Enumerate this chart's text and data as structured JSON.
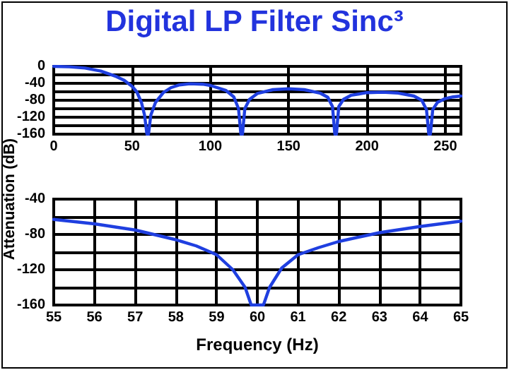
{
  "chart_data": [
    {
      "type": "line",
      "title": "Digital LP Filter Sinc³",
      "ylabel": "Attenuation (dB)",
      "grid": true,
      "marker": "none",
      "line_style": "solid",
      "xlim": [
        0,
        260
      ],
      "xticks": [
        0,
        50,
        100,
        150,
        200,
        250
      ],
      "ylim": [
        -160,
        0
      ],
      "yticks": [
        0,
        {
          "value": -20,
          "label": null
        },
        -40,
        {
          "value": -60,
          "label": null
        },
        -80,
        {
          "value": -100,
          "label": null
        },
        -120,
        {
          "value": -140,
          "label": null
        },
        -160
      ],
      "series": [
        {
          "color": "#1f3fe0",
          "x": [
            0,
            10,
            20,
            30,
            40,
            45,
            50,
            53,
            56,
            58,
            59.5,
            60.5,
            62,
            65,
            70,
            75,
            80,
            87,
            95,
            100,
            110,
            115,
            118,
            119.5,
            120.5,
            122,
            125,
            130,
            140,
            150,
            160,
            170,
            175,
            178,
            179.5,
            180.5,
            182,
            185,
            190,
            200,
            210,
            220,
            230,
            235,
            238,
            239.5,
            240.5,
            242,
            245,
            250,
            255,
            260
          ],
          "values": [
            0,
            -1,
            -4,
            -11,
            -24,
            -33,
            -47,
            -60,
            -85,
            -115,
            -160,
            -160,
            -115,
            -85,
            -62,
            -50,
            -44,
            -41,
            -42,
            -45,
            -57,
            -72,
            -100,
            -160,
            -160,
            -100,
            -78,
            -64,
            -55,
            -53,
            -55,
            -63,
            -73,
            -95,
            -160,
            -160,
            -95,
            -78,
            -68,
            -62,
            -61,
            -63,
            -70,
            -80,
            -102,
            -160,
            -160,
            -102,
            -85,
            -76,
            -72,
            -70
          ]
        }
      ]
    },
    {
      "type": "line",
      "xlabel": "Frequency (Hz)",
      "grid": true,
      "marker": "none",
      "line_style": "solid",
      "xlim": [
        55,
        65
      ],
      "xticks": [
        55,
        56,
        57,
        58,
        59,
        60,
        61,
        62,
        63,
        64,
        65
      ],
      "ylim": [
        -160,
        -40
      ],
      "yticks": [
        -40,
        {
          "value": -60,
          "label": null
        },
        -80,
        {
          "value": -100,
          "label": null
        },
        -120,
        {
          "value": -140,
          "label": null
        },
        -160
      ],
      "series": [
        {
          "color": "#1f3fe0",
          "x": [
            55,
            56,
            57,
            58,
            58.5,
            59,
            59.4,
            59.7,
            59.85,
            60.15,
            60.3,
            60.6,
            61,
            61.5,
            62,
            63,
            64,
            65
          ],
          "values": [
            -63,
            -68,
            -75,
            -86,
            -93,
            -103,
            -120,
            -140,
            -160,
            -160,
            -140,
            -118,
            -103,
            -95,
            -88,
            -78,
            -71,
            -65
          ]
        }
      ]
    }
  ]
}
